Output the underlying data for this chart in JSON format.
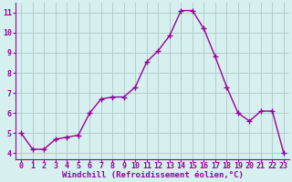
{
  "x": [
    0,
    1,
    2,
    3,
    4,
    5,
    6,
    7,
    8,
    9,
    10,
    11,
    12,
    13,
    14,
    15,
    16,
    17,
    18,
    19,
    20,
    21,
    22,
    23
  ],
  "y": [
    5.0,
    4.2,
    4.2,
    4.7,
    4.8,
    4.9,
    6.0,
    6.7,
    6.8,
    6.8,
    7.3,
    8.55,
    9.1,
    9.85,
    11.1,
    11.1,
    10.2,
    8.8,
    7.3,
    6.0,
    5.6,
    6.1,
    6.1,
    4.0
  ],
  "line_color": "#990099",
  "marker": "+",
  "marker_size": 4,
  "marker_linewidth": 1.0,
  "xlabel": "Windchill (Refroidissement éolien,°C)",
  "xlabel_color": "#990099",
  "xlabel_fontsize": 6.5,
  "tick_color": "#990099",
  "tick_fontsize": 6.0,
  "ylim": [
    3.7,
    11.5
  ],
  "xlim": [
    -0.5,
    23.5
  ],
  "yticks": [
    4,
    5,
    6,
    7,
    8,
    9,
    10,
    11
  ],
  "xticks": [
    0,
    1,
    2,
    3,
    4,
    5,
    6,
    7,
    8,
    9,
    10,
    11,
    12,
    13,
    14,
    15,
    16,
    17,
    18,
    19,
    20,
    21,
    22,
    23
  ],
  "bg_color": "#d5f0ee",
  "grid_color": "#b0c8c8",
  "border_color": "#990099",
  "line_width": 1.0,
  "fig_bg": "#cce8e4"
}
